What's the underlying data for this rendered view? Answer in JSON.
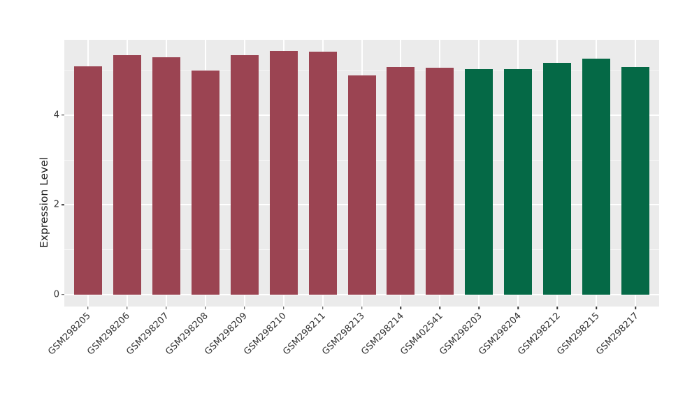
{
  "chart_data": {
    "type": "bar",
    "title": "",
    "xlabel": "",
    "ylabel": "Expression Level",
    "categories": [
      "GSM298205",
      "GSM298206",
      "GSM298207",
      "GSM298208",
      "GSM298209",
      "GSM298210",
      "GSM298211",
      "GSM298213",
      "GSM298214",
      "GSM402541",
      "GSM298203",
      "GSM298204",
      "GSM298212",
      "GSM298215",
      "GSM298217"
    ],
    "values": [
      5.09,
      5.33,
      5.29,
      5.0,
      5.33,
      5.43,
      5.41,
      4.88,
      5.08,
      5.05,
      5.02,
      5.03,
      5.17,
      5.26,
      5.08
    ],
    "bar_colors": [
      "#9B4452",
      "#9B4452",
      "#9B4452",
      "#9B4452",
      "#9B4452",
      "#9B4452",
      "#9B4452",
      "#9B4452",
      "#9B4452",
      "#9B4452",
      "#056946",
      "#056946",
      "#056946",
      "#056946",
      "#056946"
    ],
    "group_colors": {
      "red_group": "#9B4452",
      "green_group": "#056946"
    },
    "ylim": [
      -0.27,
      5.68
    ],
    "yticks": [
      0,
      2,
      4
    ],
    "ytick_labels": [
      "0",
      "2",
      "4"
    ],
    "minor_yticks": [
      1,
      3,
      5
    ],
    "grid": "on",
    "legend": "none",
    "panel_background": "#EBEBEB",
    "figure_background": "#FFFFFF"
  }
}
